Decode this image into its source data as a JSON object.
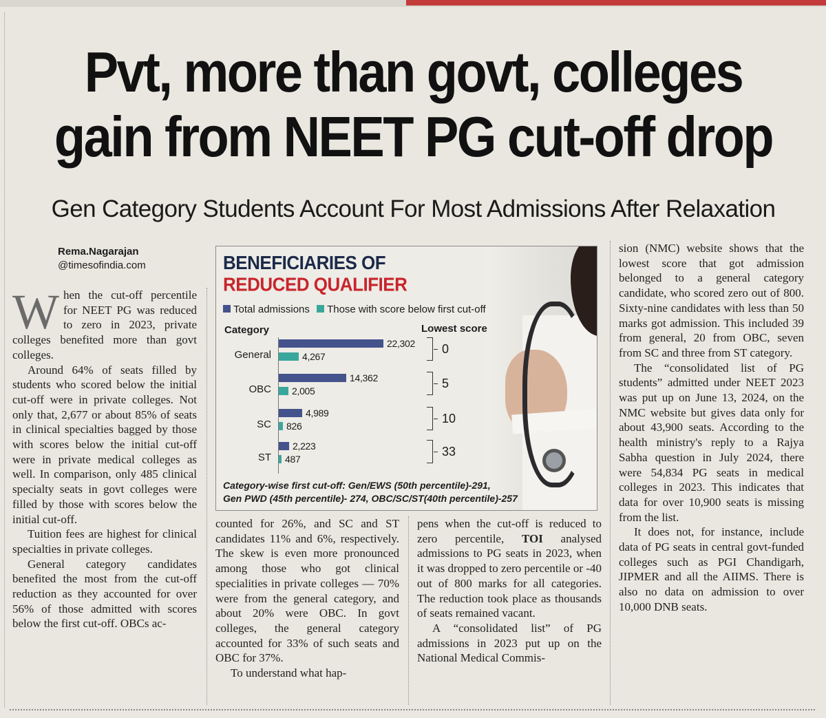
{
  "article": {
    "headline_line1": "Pvt, more than govt, colleges",
    "headline_line2": "gain from NEET PG cut-off drop",
    "subheadline": "Gen Category Students Account For Most Admissions After Relaxation",
    "byline_name": "Rema.Nagarajan",
    "byline_outlet": "@timesofindia.com",
    "col1": {
      "dropcap": "W",
      "p1": "hen the cut-off percentile for NEET PG was reduced to zero in 2023, private colleges benefited more than govt colleges.",
      "p2": "Around 64% of seats filled by students who scored below the initial cut-off were in private colleges. Not only that, 2,677 or about 85% of seats in clinical specialties bagged by those with scores below the initial cut-off were in private medical colleges as well. In comparison, only 485 clinical specialty seats in govt colleges were filled by those with scores below the initial cut-off.",
      "p3": "Tuition fees are highest for clinical specialties in private colleges.",
      "p4": "General category candidates benefited the most from the cut-off reduction as they accounted for over 56% of those admitted with scores below the first cut-off. OBCs ac-"
    },
    "col2": {
      "p1": "counted for 26%, and SC and ST candidates 11% and 6%, respectively. The skew is even more pronounced among those who got clinical specialities in private colleges — 70% were from the general category, and about 20% were OBC. In govt colleges, the general category accounted for 33% of such seats and OBC for 37%.",
      "p2": "To understand what hap-"
    },
    "col3": {
      "p1a": "pens when the cut-off is reduced to zero percentile, ",
      "p1_bold": "TOI",
      "p1b": " analysed admissions to PG seats in 2023, when it was dropped to zero percentile or -40 out of 800 marks for all categories. The reduction took place as thousands of seats remained vacant.",
      "p2": "A “consolidated list” of PG admissions in 2023 put up on the National Medical Commis-"
    },
    "col4": {
      "p1": "sion (NMC) website shows that the lowest score that got admission belonged to a general category candidate, who scored zero out of 800. Sixty-nine candidates with less than 50 marks got admission. This included 39 from general, 20 from OBC, seven from SC and three from ST category.",
      "p2": "The “consolidated list of PG students” admitted under NEET 2023 was put up on June 13, 2024, on the NMC website but gives data only for about 43,900 seats. According to the health ministry's reply to a Rajya Sabha question in July 2024, there were 54,834 PG seats in medical colleges in 2023. This indicates that data for over 10,900 seats is missing from the list.",
      "p3": "It does not, for instance, include data of PG seats in central govt-funded colleges such as PGI Chandigarh, JIPMER and all the AIIMS. There is also no data on admission to over 10,000 DNB seats."
    }
  },
  "chart_data": {
    "type": "bar",
    "title_line1": "BENEFICIARIES OF",
    "title_line2": "REDUCED QUALIFIER",
    "legend": [
      "Total admissions",
      "Those with score below first cut-off"
    ],
    "category_header": "Category",
    "lowest_score_header": "Lowest score",
    "categories": [
      "General",
      "OBC",
      "SC",
      "ST"
    ],
    "series": [
      {
        "name": "Total admissions",
        "values": [
          22302,
          14362,
          4989,
          2223
        ],
        "labels": [
          "22,302",
          "14,362",
          "4,989",
          "2,223"
        ]
      },
      {
        "name": "Those with score below first cut-off",
        "values": [
          4267,
          2005,
          826,
          487
        ],
        "labels": [
          "4,267",
          "2,005",
          "826",
          "487"
        ]
      }
    ],
    "lowest_score": [
      "0",
      "5",
      "10",
      "33"
    ],
    "footnote_line1": "Category-wise first cut-off: Gen/EWS (50th percentile)-291,",
    "footnote_line2": "Gen PWD (45th percentile)- 274, OBC/SC/ST(40th percentile)-257",
    "colors": {
      "total": "#44538c",
      "below": "#3aa79c",
      "title_dark": "#1b2a4a",
      "title_red": "#c8252c"
    }
  }
}
